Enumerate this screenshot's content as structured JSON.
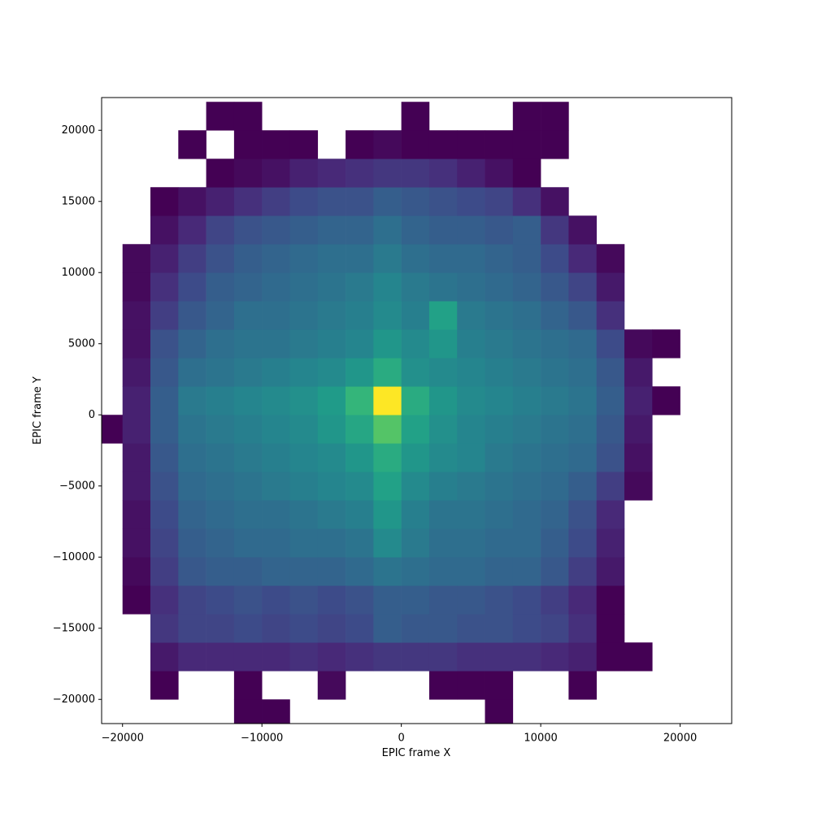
{
  "chart_data": {
    "type": "hist2d",
    "cmap": "viridis",
    "x_label": "EPIC frame X",
    "y_label": "EPIC frame Y",
    "xlim": [
      -21500,
      23700
    ],
    "ylim": [
      -21700,
      22300
    ],
    "xticks": [
      {
        "value": -20000,
        "label": "−20000"
      },
      {
        "value": -10000,
        "label": "−10000"
      },
      0,
      10000,
      20000
    ],
    "yticks": [
      {
        "value": -20000,
        "label": "−20000"
      },
      {
        "value": -15000,
        "label": "−15000"
      },
      {
        "value": -10000,
        "label": "−10000"
      },
      {
        "value": -5000,
        "label": "−5000"
      },
      0,
      5000,
      10000,
      15000,
      20000
    ],
    "xbins": [
      -22000,
      -20000,
      -18000,
      -16000,
      -14000,
      -12000,
      -10000,
      -8000,
      -6000,
      -4000,
      -2000,
      0,
      2000,
      4000,
      6000,
      8000,
      10000,
      12000,
      14000,
      16000,
      18000,
      20000,
      22000
    ],
    "ybins": [
      -22000,
      -20000,
      -18000,
      -16000,
      -14000,
      -12000,
      -10000,
      -8000,
      -6000,
      -4000,
      -2000,
      0,
      2000,
      4000,
      6000,
      8000,
      10000,
      12000,
      14000,
      16000,
      18000,
      20000,
      22000
    ],
    "counts": [
      [
        null,
        null,
        null,
        null,
        null,
        1,
        1,
        null,
        null,
        null,
        null,
        null,
        null,
        null,
        1,
        null,
        null,
        null,
        null,
        null,
        null,
        null
      ],
      [
        null,
        null,
        1,
        null,
        null,
        1,
        null,
        null,
        2,
        null,
        null,
        null,
        1,
        1,
        1,
        null,
        null,
        1,
        null,
        null,
        null,
        null
      ],
      [
        null,
        null,
        4,
        6,
        6,
        6,
        6,
        7,
        6,
        7,
        8,
        8,
        8,
        7,
        7,
        7,
        6,
        5,
        1,
        1,
        null,
        null
      ],
      [
        null,
        null,
        8,
        10,
        10,
        11,
        10,
        11,
        10,
        11,
        14,
        13,
        13,
        12,
        12,
        11,
        10,
        7,
        1,
        null,
        null,
        null
      ],
      [
        null,
        1,
        7,
        10,
        11,
        12,
        11,
        12,
        11,
        12,
        14,
        14,
        13,
        13,
        12,
        11,
        9,
        6,
        1,
        null,
        null,
        null
      ],
      [
        null,
        2,
        9,
        13,
        14,
        14,
        15,
        15,
        15,
        16,
        18,
        17,
        16,
        16,
        15,
        15,
        13,
        9,
        4,
        null,
        null,
        null
      ],
      [
        null,
        3,
        10,
        14,
        15,
        16,
        16,
        17,
        17,
        18,
        22,
        19,
        17,
        17,
        16,
        16,
        14,
        11,
        5,
        null,
        null,
        null
      ],
      [
        null,
        3,
        11,
        15,
        16,
        17,
        17,
        18,
        19,
        20,
        24,
        20,
        18,
        18,
        17,
        16,
        15,
        12,
        6,
        null,
        null,
        null
      ],
      [
        null,
        4,
        12,
        16,
        17,
        18,
        19,
        20,
        21,
        22,
        26,
        22,
        20,
        19,
        18,
        17,
        16,
        14,
        9,
        2,
        null,
        null
      ],
      [
        null,
        4,
        13,
        17,
        18,
        19,
        20,
        21,
        22,
        24,
        28,
        24,
        22,
        21,
        19,
        18,
        17,
        16,
        12,
        3,
        null,
        null
      ],
      [
        1,
        5,
        14,
        18,
        19,
        20,
        21,
        22,
        24,
        27,
        33,
        26,
        23,
        21,
        20,
        19,
        18,
        17,
        13,
        4,
        null,
        null
      ],
      [
        null,
        5,
        14,
        19,
        20,
        21,
        22,
        23,
        25,
        30,
        45,
        28,
        24,
        22,
        21,
        20,
        19,
        18,
        14,
        5,
        1,
        null
      ],
      [
        null,
        4,
        13,
        17,
        18,
        19,
        20,
        21,
        22,
        24,
        28,
        23,
        22,
        21,
        20,
        19,
        18,
        17,
        13,
        4,
        null,
        null
      ],
      [
        null,
        3,
        12,
        15,
        17,
        18,
        18,
        19,
        20,
        21,
        24,
        22,
        24,
        20,
        19,
        18,
        17,
        16,
        11,
        2,
        1,
        null
      ],
      [
        null,
        3,
        9,
        13,
        15,
        17,
        17,
        18,
        19,
        20,
        22,
        20,
        26,
        19,
        18,
        17,
        15,
        13,
        7,
        null,
        null,
        null
      ],
      [
        null,
        2,
        7,
        11,
        14,
        15,
        16,
        17,
        18,
        19,
        21,
        19,
        18,
        17,
        16,
        15,
        13,
        10,
        4,
        null,
        null,
        null
      ],
      [
        null,
        2,
        5,
        9,
        12,
        14,
        15,
        16,
        17,
        17,
        19,
        17,
        16,
        16,
        15,
        14,
        11,
        6,
        2,
        null,
        null,
        null
      ],
      [
        null,
        null,
        3,
        6,
        10,
        12,
        13,
        14,
        15,
        15,
        17,
        15,
        14,
        14,
        13,
        14,
        8,
        3,
        null,
        null,
        null,
        null
      ],
      [
        null,
        null,
        1,
        3,
        5,
        7,
        9,
        11,
        12,
        12,
        14,
        13,
        12,
        11,
        10,
        7,
        3,
        null,
        null,
        null,
        null,
        null
      ],
      [
        null,
        null,
        null,
        null,
        1,
        2,
        3,
        5,
        6,
        7,
        8,
        8,
        7,
        5,
        3,
        1,
        null,
        null,
        null,
        null,
        null,
        null
      ],
      [
        null,
        null,
        null,
        1,
        null,
        1,
        1,
        1,
        null,
        1,
        2,
        1,
        1,
        1,
        1,
        1,
        1,
        null,
        null,
        null,
        null,
        null
      ],
      [
        null,
        null,
        null,
        null,
        1,
        1,
        null,
        null,
        null,
        null,
        null,
        1,
        null,
        null,
        null,
        1,
        1,
        null,
        null,
        null,
        null,
        null
      ]
    ]
  }
}
